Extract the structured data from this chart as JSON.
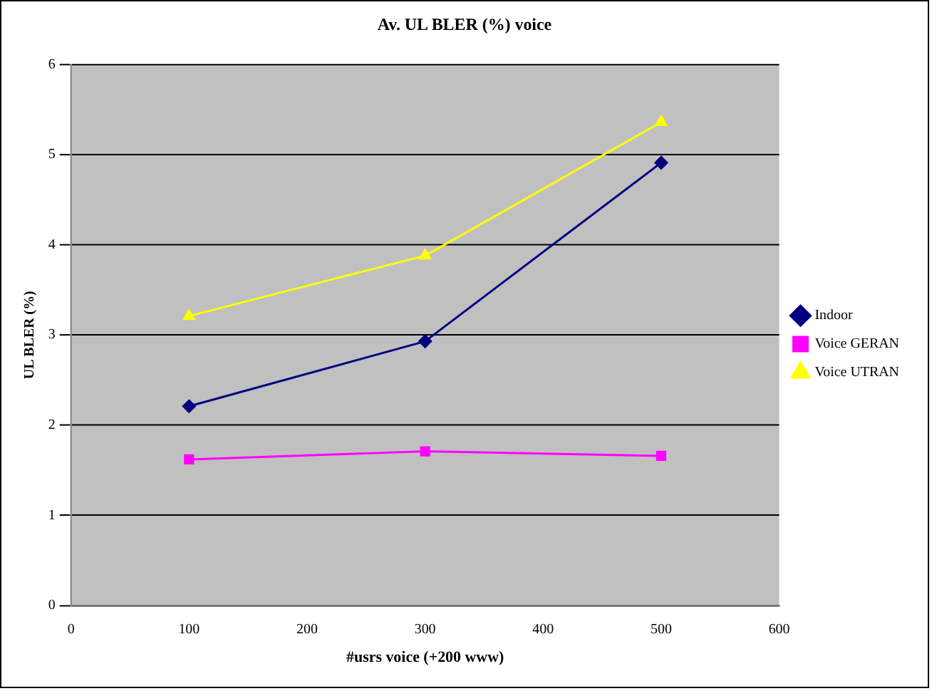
{
  "chart_data": {
    "type": "line",
    "title": "Av. UL BLER (%) voice",
    "xlabel": "#usrs voice (+200 www)",
    "ylabel": "UL BLER (%)",
    "x": [
      100,
      300,
      500
    ],
    "series": [
      {
        "name": "Indoor",
        "color": "#000080",
        "marker": "diamond",
        "values": [
          2.21,
          2.93,
          4.91
        ]
      },
      {
        "name": "Voice GERAN",
        "color": "#ff00ff",
        "marker": "square",
        "values": [
          1.62,
          1.71,
          1.66
        ]
      },
      {
        "name": "Voice UTRAN",
        "color": "#ffff00",
        "marker": "triangle",
        "values": [
          3.21,
          3.88,
          5.36
        ]
      }
    ],
    "xlim": [
      0,
      600
    ],
    "xticks": [
      0,
      100,
      200,
      300,
      400,
      500,
      600
    ],
    "ylim": [
      0,
      6
    ],
    "yticks": [
      0,
      1,
      2,
      3,
      4,
      5,
      6
    ],
    "grid": "y",
    "legend": "right"
  }
}
